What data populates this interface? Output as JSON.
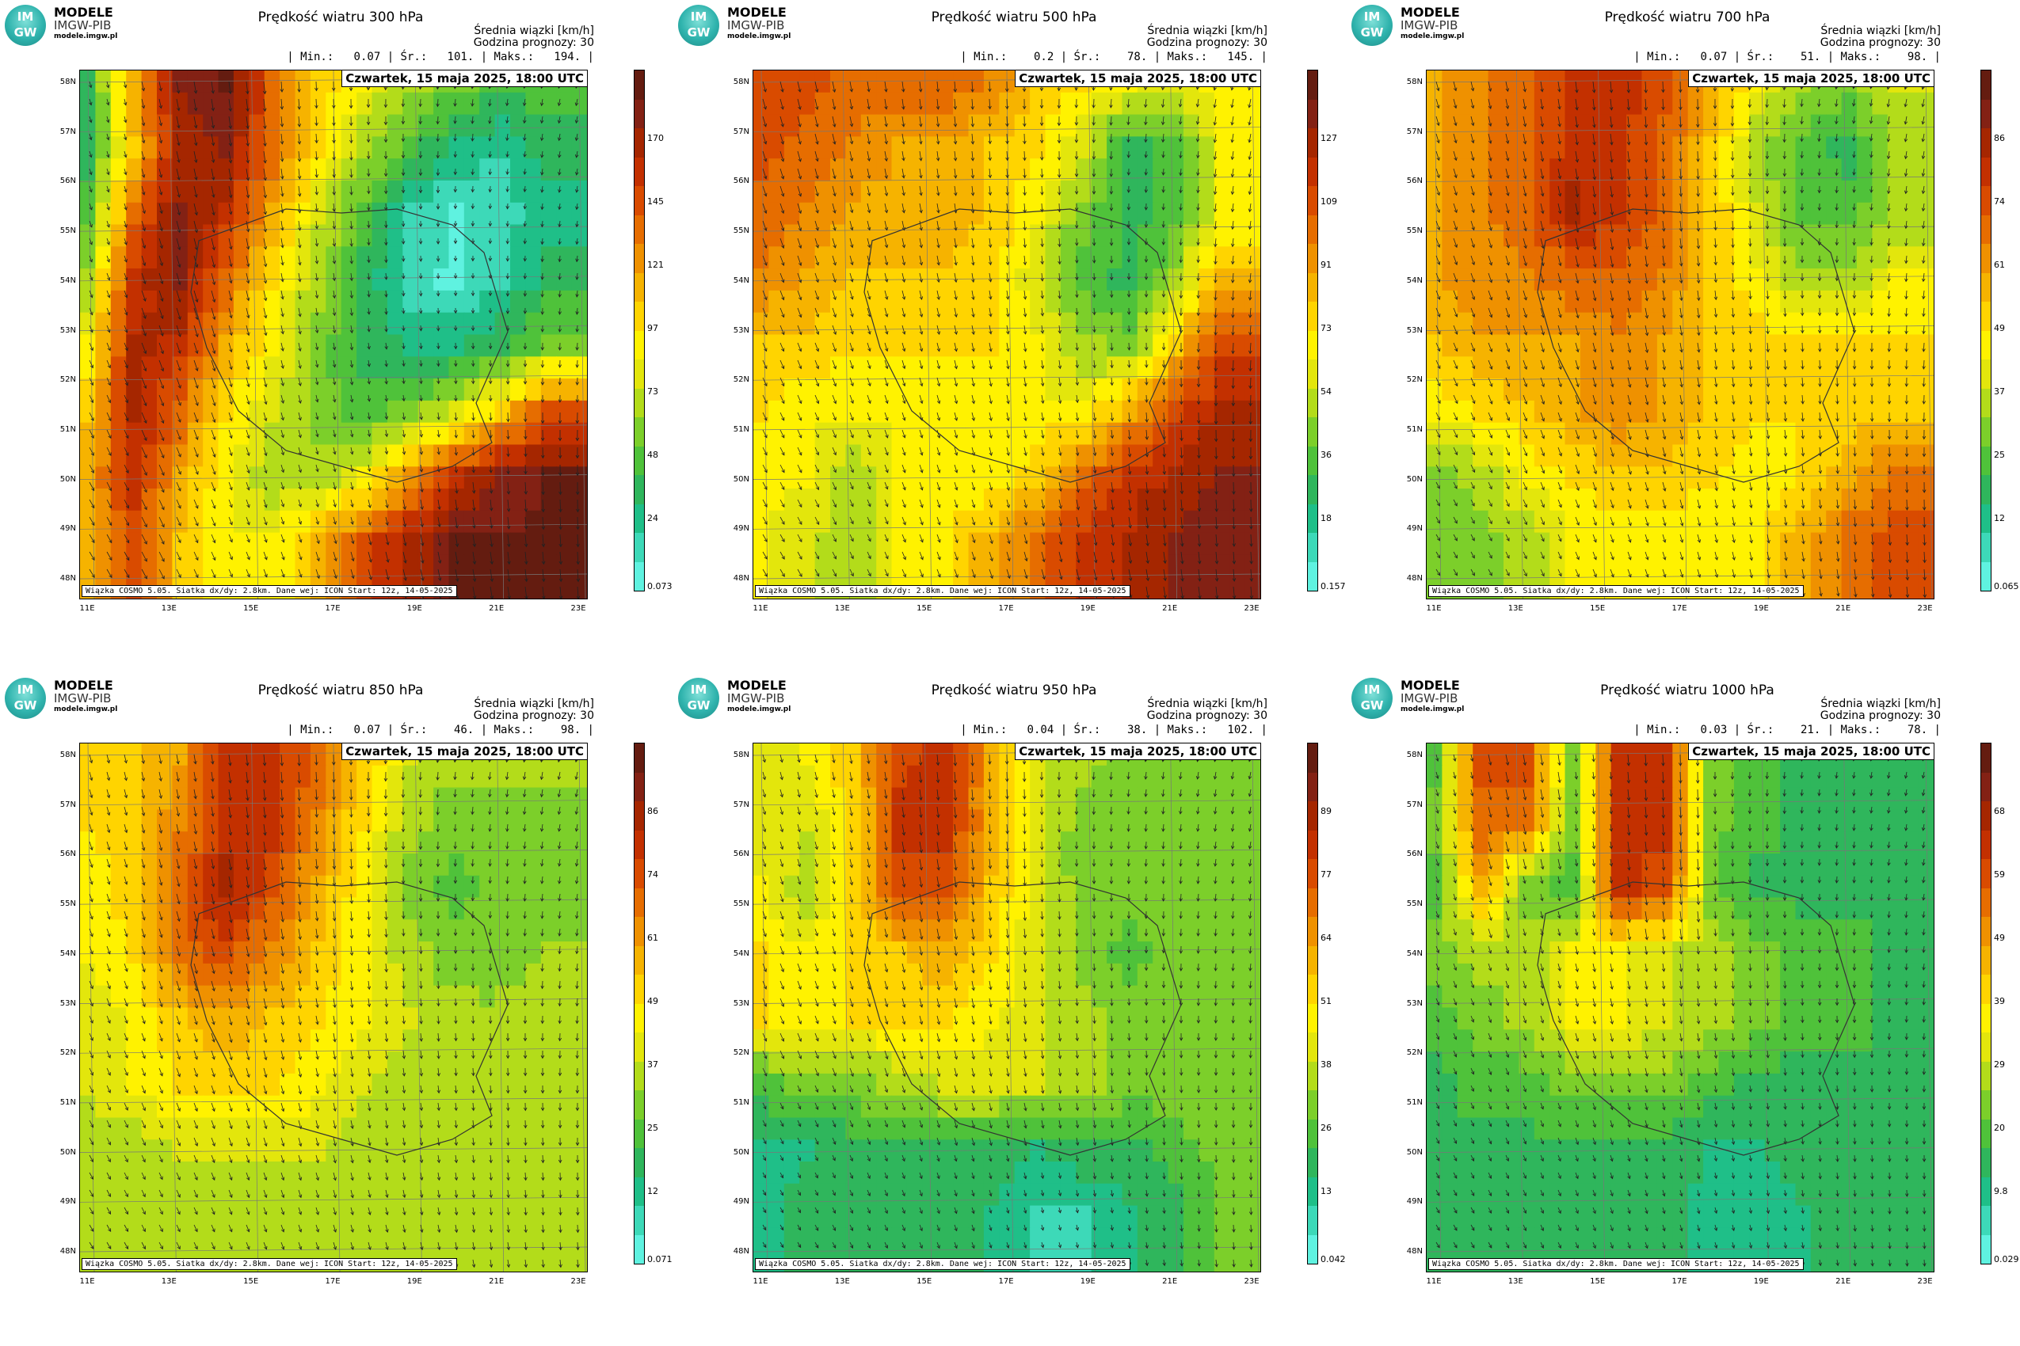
{
  "logo": {
    "line1": "MODELE",
    "line2": "IMGW-PIB",
    "line3": "modele.imgw.pl",
    "mark_top": "IM",
    "mark_bottom": "GW"
  },
  "header": {
    "mean_line": "Średnia wiązki [km/h]",
    "hour_line": "Godzina prognozy: 30",
    "date_label": "Czwartek, 15 maja 2025, 18:00 UTC"
  },
  "footer": "Wiązka COSMO 5.05. Siatka dx/dy: 2.8km. Dane wej: ICON Start: 12z, 14-05-2025",
  "axes": {
    "lat_labels": [
      "58N",
      "57N",
      "56N",
      "55N",
      "54N",
      "53N",
      "52N",
      "51N",
      "50N",
      "49N",
      "48N"
    ],
    "lon_labels": [
      "11E",
      "13E",
      "15E",
      "17E",
      "19E",
      "21E",
      "23E"
    ]
  },
  "colors": {
    "cbar": [
      "#5ff2e0",
      "#3dd9b8",
      "#1fbf88",
      "#2fb65c",
      "#4fc23a",
      "#7ccf2a",
      "#b3dc1a",
      "#e3e60c",
      "#fff200",
      "#ffd400",
      "#f6b300",
      "#ef9100",
      "#e66d00",
      "#d94b00",
      "#c33000",
      "#a52600",
      "#832114",
      "#641c10"
    ]
  },
  "panels": [
    {
      "title": "Prędkość wiatru 300 hPa",
      "stats": "| Min.:   0.07 | Śr.:   101. | Maks.:   194. |",
      "cbar_ticks": [
        "170",
        "145",
        "121",
        "97",
        "73",
        "48",
        "24",
        "0.073"
      ],
      "scalar_field": [
        [
          0.2,
          0.6,
          0.9,
          0.95,
          0.7,
          0.55,
          0.45,
          0.35,
          0.3,
          0.25,
          0.25
        ],
        [
          0.2,
          0.55,
          0.85,
          0.9,
          0.7,
          0.5,
          0.35,
          0.25,
          0.15,
          0.12,
          0.2
        ],
        [
          0.25,
          0.7,
          0.9,
          0.8,
          0.6,
          0.4,
          0.25,
          0.1,
          0.05,
          0.08,
          0.15
        ],
        [
          0.35,
          0.8,
          0.9,
          0.7,
          0.5,
          0.35,
          0.2,
          0.08,
          0.04,
          0.1,
          0.2
        ],
        [
          0.45,
          0.85,
          0.8,
          0.6,
          0.45,
          0.3,
          0.2,
          0.15,
          0.15,
          0.2,
          0.3
        ],
        [
          0.55,
          0.85,
          0.7,
          0.5,
          0.4,
          0.3,
          0.25,
          0.3,
          0.4,
          0.55,
          0.75
        ],
        [
          0.6,
          0.8,
          0.6,
          0.45,
          0.35,
          0.35,
          0.45,
          0.65,
          0.8,
          0.9,
          0.95
        ],
        [
          0.6,
          0.75,
          0.55,
          0.45,
          0.45,
          0.6,
          0.75,
          0.85,
          0.95,
          0.95,
          0.95
        ]
      ]
    },
    {
      "title": "Prędkość wiatru 500 hPa",
      "stats": "| Min.:    0.2 | Śr.:    78. | Maks.:   145. |",
      "cbar_ticks": [
        "127",
        "109",
        "91",
        "73",
        "54",
        "36",
        "18",
        "0.157"
      ],
      "scalar_field": [
        [
          0.75,
          0.75,
          0.7,
          0.7,
          0.7,
          0.65,
          0.55,
          0.5,
          0.45,
          0.4,
          0.5
        ],
        [
          0.75,
          0.7,
          0.65,
          0.6,
          0.6,
          0.55,
          0.5,
          0.4,
          0.2,
          0.25,
          0.45
        ],
        [
          0.7,
          0.65,
          0.6,
          0.6,
          0.6,
          0.55,
          0.45,
          0.3,
          0.2,
          0.25,
          0.45
        ],
        [
          0.65,
          0.6,
          0.55,
          0.55,
          0.55,
          0.5,
          0.4,
          0.25,
          0.2,
          0.35,
          0.6
        ],
        [
          0.55,
          0.55,
          0.5,
          0.5,
          0.5,
          0.5,
          0.45,
          0.35,
          0.3,
          0.55,
          0.75
        ],
        [
          0.5,
          0.45,
          0.45,
          0.45,
          0.45,
          0.45,
          0.45,
          0.45,
          0.6,
          0.75,
          0.85
        ],
        [
          0.45,
          0.45,
          0.35,
          0.45,
          0.45,
          0.45,
          0.55,
          0.7,
          0.8,
          0.85,
          0.9
        ],
        [
          0.45,
          0.4,
          0.35,
          0.45,
          0.5,
          0.6,
          0.7,
          0.8,
          0.85,
          0.9,
          0.9
        ]
      ]
    },
    {
      "title": "Prędkość wiatru 700 hPa",
      "stats": "| Min.:   0.07 | Śr.:    51. | Maks.:    98. |",
      "cbar_ticks": [
        "86",
        "74",
        "61",
        "49",
        "37",
        "25",
        "12",
        "0.065"
      ],
      "scalar_field": [
        [
          0.6,
          0.65,
          0.7,
          0.8,
          0.8,
          0.75,
          0.6,
          0.45,
          0.35,
          0.3,
          0.4
        ],
        [
          0.6,
          0.65,
          0.7,
          0.8,
          0.8,
          0.7,
          0.55,
          0.35,
          0.25,
          0.2,
          0.35
        ],
        [
          0.6,
          0.65,
          0.7,
          0.85,
          0.8,
          0.7,
          0.55,
          0.4,
          0.25,
          0.25,
          0.35
        ],
        [
          0.6,
          0.65,
          0.65,
          0.7,
          0.7,
          0.65,
          0.55,
          0.45,
          0.35,
          0.35,
          0.45
        ],
        [
          0.55,
          0.6,
          0.6,
          0.6,
          0.65,
          0.6,
          0.55,
          0.55,
          0.5,
          0.5,
          0.5
        ],
        [
          0.45,
          0.5,
          0.55,
          0.6,
          0.65,
          0.6,
          0.55,
          0.5,
          0.5,
          0.5,
          0.55
        ],
        [
          0.3,
          0.35,
          0.45,
          0.5,
          0.55,
          0.55,
          0.5,
          0.45,
          0.5,
          0.6,
          0.7
        ],
        [
          0.3,
          0.3,
          0.35,
          0.45,
          0.45,
          0.45,
          0.45,
          0.5,
          0.6,
          0.7,
          0.75
        ]
      ]
    },
    {
      "title": "Prędkość wiatru 850 hPa",
      "stats": "| Min.:   0.07 | Śr.:    46. | Maks.:    98. |",
      "cbar_ticks": [
        "86",
        "74",
        "61",
        "49",
        "37",
        "25",
        "12",
        "0.071"
      ],
      "scalar_field": [
        [
          0.5,
          0.55,
          0.6,
          0.8,
          0.8,
          0.7,
          0.55,
          0.4,
          0.35,
          0.35,
          0.35
        ],
        [
          0.5,
          0.55,
          0.65,
          0.8,
          0.8,
          0.65,
          0.5,
          0.35,
          0.3,
          0.3,
          0.3
        ],
        [
          0.45,
          0.55,
          0.7,
          0.85,
          0.75,
          0.6,
          0.45,
          0.3,
          0.25,
          0.3,
          0.3
        ],
        [
          0.45,
          0.5,
          0.7,
          0.75,
          0.65,
          0.55,
          0.45,
          0.35,
          0.3,
          0.3,
          0.35
        ],
        [
          0.4,
          0.45,
          0.55,
          0.6,
          0.55,
          0.5,
          0.45,
          0.4,
          0.35,
          0.35,
          0.35
        ],
        [
          0.4,
          0.45,
          0.5,
          0.5,
          0.5,
          0.45,
          0.4,
          0.35,
          0.35,
          0.35,
          0.35
        ],
        [
          0.35,
          0.35,
          0.4,
          0.4,
          0.4,
          0.4,
          0.35,
          0.35,
          0.35,
          0.35,
          0.35
        ],
        [
          0.35,
          0.35,
          0.35,
          0.35,
          0.35,
          0.35,
          0.35,
          0.35,
          0.35,
          0.35,
          0.35
        ]
      ]
    },
    {
      "title": "Prędkość wiatru 950 hPa",
      "stats": "| Min.:   0.04 | Śr.:    38. | Maks.:   102. |",
      "cbar_ticks": [
        "89",
        "77",
        "64",
        "51",
        "38",
        "26",
        "13",
        "0.042"
      ],
      "scalar_field": [
        [
          0.4,
          0.45,
          0.55,
          0.75,
          0.8,
          0.6,
          0.4,
          0.35,
          0.3,
          0.3,
          0.3
        ],
        [
          0.4,
          0.4,
          0.5,
          0.8,
          0.8,
          0.6,
          0.4,
          0.3,
          0.3,
          0.3,
          0.3
        ],
        [
          0.45,
          0.35,
          0.5,
          0.75,
          0.75,
          0.55,
          0.4,
          0.3,
          0.3,
          0.3,
          0.3
        ],
        [
          0.5,
          0.45,
          0.5,
          0.55,
          0.6,
          0.5,
          0.4,
          0.3,
          0.25,
          0.3,
          0.3
        ],
        [
          0.5,
          0.45,
          0.5,
          0.5,
          0.5,
          0.45,
          0.4,
          0.35,
          0.3,
          0.3,
          0.3
        ],
        [
          0.25,
          0.3,
          0.3,
          0.35,
          0.4,
          0.4,
          0.4,
          0.35,
          0.3,
          0.3,
          0.3
        ],
        [
          0.15,
          0.15,
          0.2,
          0.2,
          0.2,
          0.2,
          0.15,
          0.2,
          0.2,
          0.25,
          0.3
        ],
        [
          0.15,
          0.2,
          0.2,
          0.2,
          0.2,
          0.15,
          0.1,
          0.1,
          0.15,
          0.2,
          0.3
        ]
      ]
    },
    {
      "title": "Prędkość wiatru 1000 hPa",
      "stats": "| Min.:   0.03 | Śr.:    21. | Maks.:    78. |",
      "cbar_ticks": [
        "68",
        "59",
        "49",
        "39",
        "29",
        "20",
        "9.8",
        "0.029"
      ],
      "scalar_field": [
        [
          0.25,
          0.75,
          0.75,
          0.3,
          0.8,
          0.8,
          0.3,
          0.25,
          0.2,
          0.2,
          0.2
        ],
        [
          0.3,
          0.7,
          0.7,
          0.3,
          0.8,
          0.8,
          0.3,
          0.25,
          0.2,
          0.2,
          0.2
        ],
        [
          0.25,
          0.6,
          0.3,
          0.25,
          0.8,
          0.75,
          0.3,
          0.2,
          0.2,
          0.2,
          0.2
        ],
        [
          0.3,
          0.35,
          0.35,
          0.45,
          0.45,
          0.4,
          0.35,
          0.3,
          0.25,
          0.25,
          0.2
        ],
        [
          0.25,
          0.3,
          0.35,
          0.45,
          0.45,
          0.4,
          0.35,
          0.3,
          0.25,
          0.25,
          0.2
        ],
        [
          0.2,
          0.25,
          0.25,
          0.3,
          0.3,
          0.3,
          0.25,
          0.2,
          0.2,
          0.2,
          0.2
        ],
        [
          0.2,
          0.2,
          0.2,
          0.2,
          0.2,
          0.2,
          0.15,
          0.15,
          0.2,
          0.2,
          0.2
        ],
        [
          0.2,
          0.2,
          0.2,
          0.2,
          0.2,
          0.2,
          0.15,
          0.15,
          0.15,
          0.2,
          0.2
        ]
      ]
    }
  ]
}
